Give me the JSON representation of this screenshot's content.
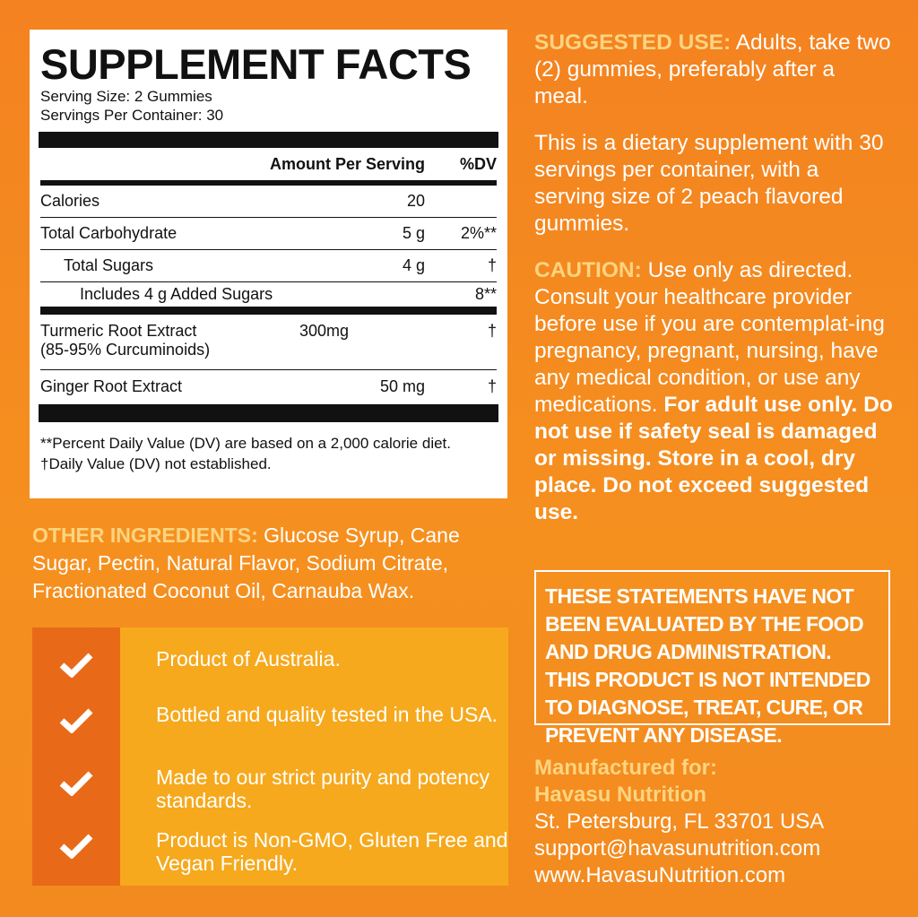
{
  "facts": {
    "title": "SUPPLEMENT FACTS",
    "serving_size": "Serving Size: 2 Gummies",
    "servings": "Servings Per Container: 30",
    "col_amount": "Amount Per Serving",
    "col_dv": "%DV",
    "rows": [
      {
        "name": "Calories",
        "amount": "20",
        "dv": ""
      },
      {
        "name": "Total Carbohydrate",
        "amount": "5 g",
        "dv": "2%**"
      },
      {
        "name": "Total Sugars",
        "amount": "4 g",
        "dv": "†"
      },
      {
        "name": "Includes 4 g Added Sugars",
        "amount": "",
        "dv": "8**"
      },
      {
        "name": "Turmeric Root Extract",
        "name2": "(85-95% Curcuminoids)",
        "amount": "300mg",
        "dv": "†"
      },
      {
        "name": "Ginger Root Extract",
        "amount": "50 mg",
        "dv": "†"
      }
    ],
    "foot1": "**Percent Daily Value (DV) are based on a 2,000 calorie diet.",
    "foot2": "†Daily Value (DV) not established."
  },
  "ingredients": {
    "label": "OTHER INGREDIENTS:",
    "text": "Glucose Syrup, Cane Sugar, Pectin, Natural Flavor, Sodium Citrate, Fractionated Coconut Oil, Carnauba Wax."
  },
  "checks": [
    "Product of Australia.",
    "Bottled and quality tested in the USA.",
    "Made to our strict purity and potency standards.",
    "Product is Non-GMO, Gluten Free and Vegan Friendly."
  ],
  "use": {
    "label": "SUGGESTED USE:",
    "text": "Adults, take two (2) gummies, preferably after a meal."
  },
  "info": "This is a dietary supplement with 30 servings per container, with a serving size of 2 peach flavored gummies.",
  "caution": {
    "label": "CAUTION:",
    "text": "Use only as directed. Consult your healthcare provider before use if you are contemplat-ing pregnancy, pregnant, nursing, have any medical condition, or use any medications.",
    "bold": "For adult use only. Do not use if safety seal is damaged or missing. Store in a cool, dry place. Do not exceed suggested use."
  },
  "disclaimer": "These statements have not been evaluated by the Food and Drug Administration. This product is not intended to diagnose, treat, cure, or prevent any disease.",
  "manufacturer": {
    "label": "Manufactured for:",
    "name": "Havasu Nutrition",
    "address": "St. Petersburg, FL 33701 USA",
    "email": "support@havasunutrition.com",
    "web": "www.HavasuNutrition.com"
  },
  "colors": {
    "background": "#f48220",
    "highlight": "#fcd480",
    "check_dark": "#e86a18",
    "check_light": "#f6a91d"
  }
}
